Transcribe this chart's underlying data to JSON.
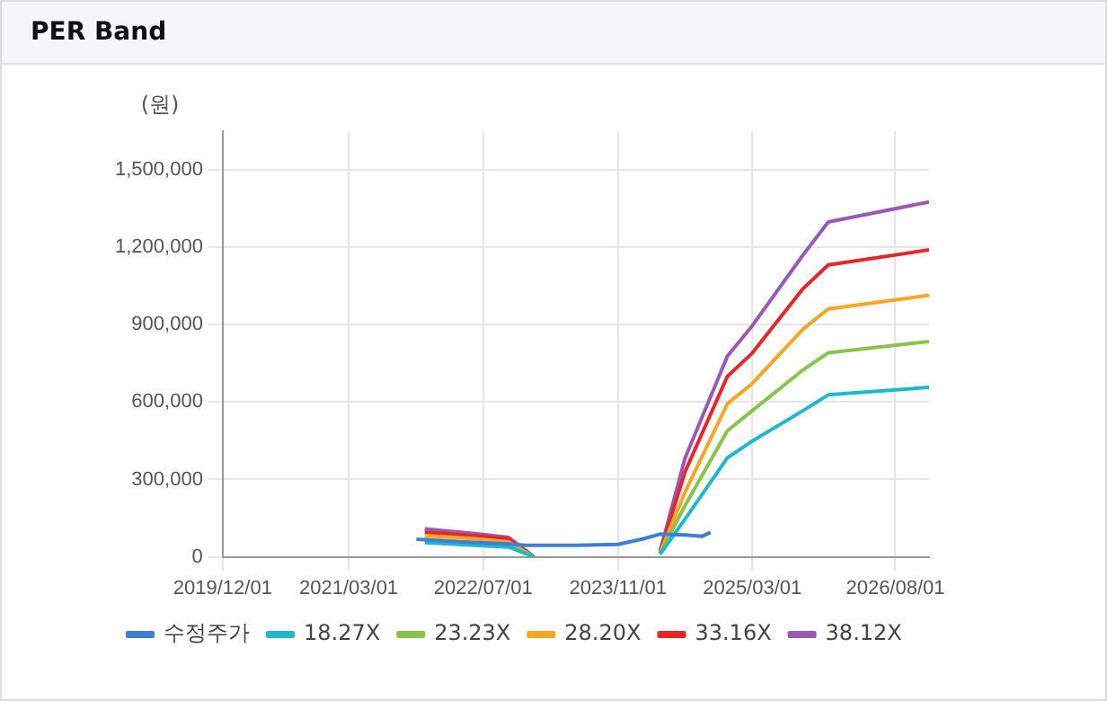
{
  "chart_data": {
    "type": "line",
    "title": "PER Band",
    "ylabel": "(원)",
    "x": [
      "2021-12",
      "2022-06",
      "2022-10",
      "2023-01",
      "2023-06",
      "2024-04",
      "2024-07",
      "2024-12",
      "2025-03",
      "2025-09",
      "2025-12",
      "2026-12"
    ],
    "series": [
      {
        "name": "수정주가",
        "color": "#3d7fd6",
        "x": [
          "2021-11",
          "2022-03",
          "2022-10",
          "2022-12",
          "2023-06",
          "2023-11",
          "2024-02",
          "2024-04",
          "2024-07",
          "2024-09",
          "2024-10"
        ],
        "values": [
          68000,
          60000,
          50000,
          45000,
          45000,
          48000,
          70000,
          88000,
          85000,
          80000,
          95000
        ]
      },
      {
        "name": "18.27X",
        "color": "#1fb8cf",
        "values": [
          55000,
          45000,
          38000,
          0,
          null,
          10000,
          147000,
          384000,
          449000,
          567000,
          628000,
          657000
        ]
      },
      {
        "name": "23.23X",
        "color": "#8bc34a",
        "values": [
          68000,
          55000,
          48000,
          0,
          null,
          12000,
          200000,
          489000,
          567000,
          725000,
          791000,
          835000
        ]
      },
      {
        "name": "28.20X",
        "color": "#f5a623",
        "values": [
          82000,
          70000,
          58000,
          0,
          null,
          15000,
          252000,
          594000,
          672000,
          883000,
          961000,
          1014000
        ]
      },
      {
        "name": "33.16X",
        "color": "#e8262a",
        "values": [
          95000,
          82000,
          70000,
          0,
          null,
          18000,
          331000,
          700000,
          790000,
          1040000,
          1132000,
          1190000
        ]
      },
      {
        "name": "38.12X",
        "color": "#9b59b6",
        "values": [
          108000,
          90000,
          75000,
          0,
          null,
          20000,
          384000,
          778000,
          896000,
          1171000,
          1298000,
          1376000
        ]
      }
    ],
    "xlim": [
      "2019-12-01",
      "2026-12-01"
    ],
    "xticks": [
      {
        "value": "2019-12-01",
        "label": "2019/12/01"
      },
      {
        "value": "2021-03-01",
        "label": "2021/03/01"
      },
      {
        "value": "2022-07-01",
        "label": "2022/07/01"
      },
      {
        "value": "2023-11-01",
        "label": "2023/11/01"
      },
      {
        "value": "2025-03-01",
        "label": "2025/03/01"
      },
      {
        "value": "2026-08-01",
        "label": "2026/08/01"
      }
    ],
    "ylim": [
      0,
      1650000
    ],
    "yticks": [
      {
        "value": 0,
        "label": "0"
      },
      {
        "value": 300000,
        "label": "300,000"
      },
      {
        "value": 600000,
        "label": "600,000"
      },
      {
        "value": 900000,
        "label": "900,000"
      },
      {
        "value": 1200000,
        "label": "1,200,000"
      },
      {
        "value": 1500000,
        "label": "1,500,000"
      }
    ],
    "grid": true,
    "legend": "bottom",
    "marker": "none",
    "line_style": "solid"
  }
}
